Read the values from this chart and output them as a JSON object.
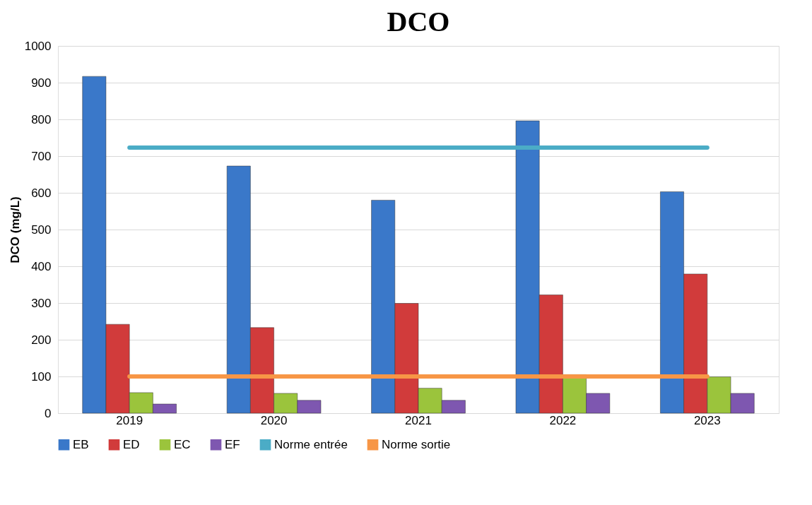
{
  "chart_data": {
    "type": "bar",
    "title": "DCO",
    "ylabel": "DCO (mg/L)",
    "categories": [
      "2019",
      "2020",
      "2021",
      "2022",
      "2023"
    ],
    "series": [
      {
        "name": "EB",
        "color": "#3a78c9",
        "values": [
          917,
          673,
          580,
          796,
          603
        ]
      },
      {
        "name": "ED",
        "color": "#d13b3b",
        "values": [
          242,
          233,
          299,
          322,
          379
        ]
      },
      {
        "name": "EC",
        "color": "#9bc43c",
        "values": [
          56,
          54,
          68,
          105,
          99
        ]
      },
      {
        "name": "EF",
        "color": "#7e57b0",
        "values": [
          25,
          35,
          35,
          54,
          54
        ]
      },
      {
        "name": "Norme entrée",
        "type": "line",
        "color": "#4bacc6",
        "values": [
          723,
          723,
          723,
          723,
          723
        ]
      },
      {
        "name": "Norme sortie",
        "type": "line",
        "color": "#f79646",
        "values": [
          100,
          100,
          100,
          100,
          100
        ]
      }
    ],
    "ylim": [
      0,
      1000
    ],
    "yticks": [
      0,
      100,
      200,
      300,
      400,
      500,
      600,
      700,
      800,
      900,
      1000
    ],
    "grid": "y",
    "legend": "bottom",
    "marker": "none",
    "line_style": "solid"
  }
}
